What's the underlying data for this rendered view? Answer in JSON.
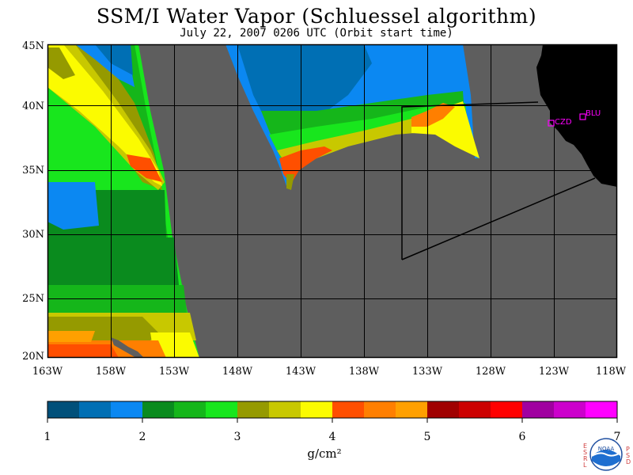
{
  "title": "SSM/I Water Vapor (Schluessel algorithm)",
  "subtitle": "July 22, 2007  0206 UTC  (Orbit start time)",
  "lat_labels": [
    "45N",
    "40N",
    "35N",
    "30N",
    "25N",
    "20N"
  ],
  "lon_labels": [
    "163W",
    "158W",
    "153W",
    "148W",
    "143W",
    "138W",
    "133W",
    "128W",
    "123W",
    "118W"
  ],
  "stations": [
    {
      "name": "CZD"
    },
    {
      "name": "BLU"
    }
  ],
  "colorbar": {
    "labels": [
      "1",
      "2",
      "3",
      "4",
      "5",
      "6",
      "7"
    ],
    "unit": "g/cm²",
    "colors": [
      "#00507a",
      "#006fb4",
      "#0b88f2",
      "#0a8b1e",
      "#15b61a",
      "#18e61d",
      "#959a00",
      "#c8c800",
      "#fbfb00",
      "#ff4f00",
      "#ff7f00",
      "#ffa000",
      "#a00000",
      "#cc0000",
      "#ff0000",
      "#a000a0",
      "#cc00cc",
      "#ff00ff"
    ]
  },
  "colors": {
    "no_data": "#5e5e5e",
    "land": "#000000",
    "station": "#ff00ff"
  },
  "logo": {
    "left_letters": "ESRL",
    "right_letters": "PSD",
    "text": "NOAA"
  }
}
